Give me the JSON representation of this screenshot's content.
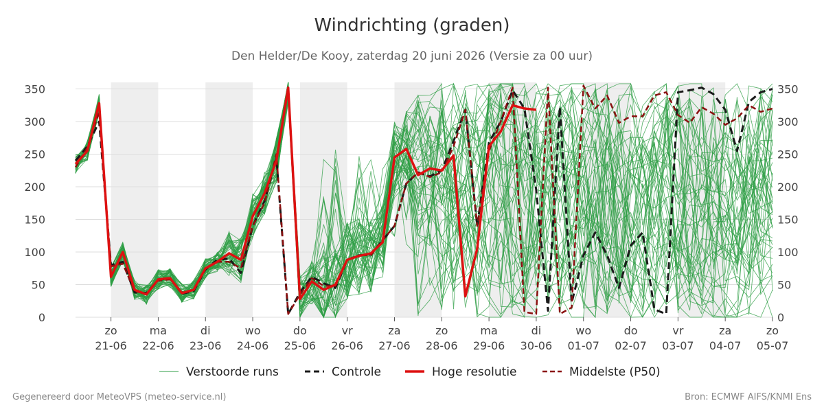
{
  "header": {
    "title": "Windrichting (graden)",
    "subtitle": "Den Helder/De Kooy, zaterdag 20 juni 2026 (Versie za 00 uur)"
  },
  "footer": {
    "left": "Gegenereerd door MeteoVPS (meteo-service.nl)",
    "right": "Bron: ECMWF AIFS/KNMI Ens"
  },
  "colors": {
    "members": "#2e9e44",
    "control": "#1a1a1a",
    "hires": "#dd1111",
    "median": "#8b1010",
    "shade": "#eeeeee",
    "grid": "#dddddd"
  },
  "chart_data": {
    "type": "line",
    "title": "Windrichting (graden)",
    "ylim": [
      0,
      360
    ],
    "yticks": [
      0,
      50,
      100,
      150,
      200,
      250,
      300,
      350
    ],
    "xlim": [
      -0.75,
      14.0
    ],
    "grid": true,
    "legend_placement": "bottom",
    "x_ticks": [
      {
        "x": 0,
        "day": "zo",
        "date": "21-06"
      },
      {
        "x": 1,
        "day": "ma",
        "date": "22-06"
      },
      {
        "x": 2,
        "day": "di",
        "date": "23-06"
      },
      {
        "x": 3,
        "day": "wo",
        "date": "24-06"
      },
      {
        "x": 4,
        "day": "do",
        "date": "25-06"
      },
      {
        "x": 5,
        "day": "vr",
        "date": "26-06"
      },
      {
        "x": 6,
        "day": "za",
        "date": "27-06"
      },
      {
        "x": 7,
        "day": "zo",
        "date": "28-06"
      },
      {
        "x": 8,
        "day": "ma",
        "date": "29-06"
      },
      {
        "x": 9,
        "day": "di",
        "date": "30-06"
      },
      {
        "x": 10,
        "day": "wo",
        "date": "01-07"
      },
      {
        "x": 11,
        "day": "do",
        "date": "02-07"
      },
      {
        "x": 12,
        "day": "vr",
        "date": "03-07"
      },
      {
        "x": 13,
        "day": "za",
        "date": "04-07"
      },
      {
        "x": 14,
        "day": "zo",
        "date": "05-07"
      }
    ],
    "night_bands": [
      [
        0,
        1
      ],
      [
        2,
        3
      ],
      [
        4,
        5
      ],
      [
        6,
        7
      ],
      [
        8,
        9
      ],
      [
        10,
        11
      ],
      [
        12,
        13
      ]
    ],
    "legend": [
      {
        "key": "members",
        "label": "Verstoorde runs",
        "style": "thin"
      },
      {
        "key": "control",
        "label": "Controle",
        "style": "dashed"
      },
      {
        "key": "hires",
        "label": "Hoge resolutie",
        "style": "solid"
      },
      {
        "key": "median",
        "label": "Middelste (P50)",
        "style": "dashed"
      }
    ],
    "series": [
      {
        "name": "Hoge resolutie",
        "key": "hires",
        "x": [
          -0.75,
          -0.5,
          -0.25,
          0,
          0.25,
          0.5,
          0.75,
          1,
          1.25,
          1.5,
          1.75,
          2,
          2.25,
          2.5,
          2.75,
          3,
          3.25,
          3.5,
          3.75,
          4,
          4.25,
          4.5,
          4.75,
          5,
          5.25,
          5.5,
          5.75,
          6,
          6.25,
          6.5,
          6.75,
          7,
          7.25,
          7.5,
          7.75,
          8,
          8.25,
          8.5,
          8.75,
          9
        ],
        "values": [
          235,
          255,
          328,
          62,
          100,
          42,
          35,
          58,
          60,
          37,
          42,
          75,
          85,
          98,
          88,
          155,
          190,
          240,
          352,
          28,
          55,
          42,
          50,
          88,
          94,
          98,
          115,
          245,
          258,
          218,
          228,
          225,
          248,
          32,
          105,
          262,
          285,
          325,
          320,
          318
        ]
      },
      {
        "name": "Controle",
        "key": "control",
        "x": [
          -0.75,
          -0.5,
          -0.25,
          0,
          0.25,
          0.5,
          0.75,
          1,
          1.25,
          1.5,
          1.75,
          2,
          2.25,
          2.5,
          2.75,
          3,
          3.25,
          3.5,
          3.75,
          4,
          4.25,
          4.5,
          4.75,
          5,
          5.25,
          5.5,
          5.75,
          6,
          6.25,
          6.5,
          6.75,
          7,
          7.25,
          7.5,
          7.75,
          8,
          8.25,
          8.5,
          8.75,
          9,
          9.25,
          9.5,
          9.75,
          10,
          10.25,
          10.5,
          10.75,
          11,
          11.25,
          11.5,
          11.75,
          12,
          12.25,
          12.5,
          12.75,
          13,
          13.25,
          13.5,
          13.75,
          14
        ],
        "values": [
          240,
          262,
          300,
          80,
          85,
          38,
          37,
          57,
          60,
          36,
          40,
          73,
          88,
          90,
          68,
          140,
          178,
          245,
          5,
          38,
          62,
          52,
          45,
          88,
          95,
          96,
          118,
          140,
          205,
          222,
          216,
          225,
          270,
          318,
          140,
          268,
          300,
          348,
          320,
          195,
          10,
          322,
          22,
          95,
          130,
          95,
          45,
          110,
          130,
          12,
          5,
          345,
          348,
          352,
          342,
          318,
          255,
          330,
          345,
          350
        ]
      },
      {
        "name": "Middelste (P50)",
        "key": "median",
        "x": [
          -0.75,
          -0.5,
          -0.25,
          0,
          0.25,
          0.5,
          0.75,
          1,
          1.25,
          1.5,
          1.75,
          2,
          2.25,
          2.5,
          2.75,
          3,
          3.25,
          3.5,
          3.75,
          4,
          4.25,
          4.5,
          4.75,
          5,
          5.25,
          5.5,
          5.75,
          6,
          6.25,
          6.5,
          6.75,
          7,
          7.25,
          7.5,
          7.75,
          8,
          8.25,
          8.5,
          8.75,
          9,
          9.25,
          9.5,
          9.75,
          10,
          10.25,
          10.5,
          10.75,
          11,
          11.25,
          11.5,
          11.75,
          12,
          12.25,
          12.5,
          12.75,
          13,
          13.25,
          13.5,
          13.75,
          14
        ],
        "values": [
          230,
          260,
          315,
          78,
          82,
          40,
          36,
          56,
          58,
          38,
          42,
          75,
          85,
          85,
          75,
          140,
          175,
          250,
          5,
          35,
          60,
          48,
          48,
          88,
          95,
          95,
          118,
          140,
          205,
          222,
          215,
          222,
          262,
          318,
          140,
          255,
          300,
          352,
          8,
          5,
          352,
          5,
          15,
          355,
          320,
          340,
          298,
          308,
          308,
          340,
          345,
          310,
          298,
          322,
          312,
          295,
          305,
          325,
          315,
          320
        ]
      }
    ]
  }
}
